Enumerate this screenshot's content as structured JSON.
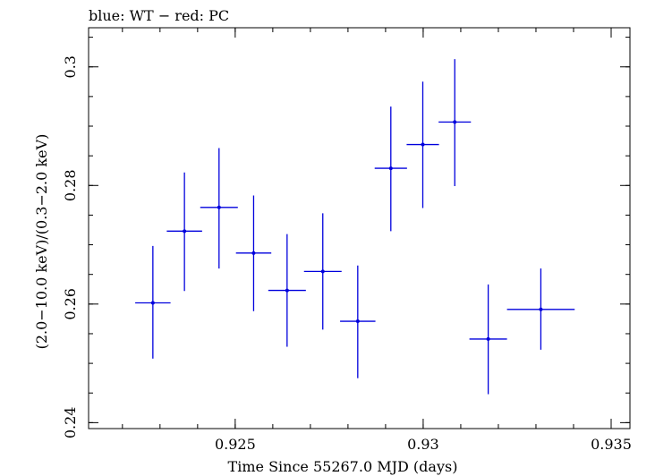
{
  "chart_data": {
    "type": "scatter",
    "title": "blue: WT − red: PC",
    "xlabel": "Time Since 55267.0 MJD (days)",
    "ylabel": "(2.0−10.0 keV)/(0.3−2.0 keV)",
    "xlim": [
      0.9211,
      0.9355
    ],
    "ylim": [
      0.239,
      0.3066
    ],
    "x_ticks": [
      {
        "value": 0.925,
        "label": "0.925"
      },
      {
        "value": 0.93,
        "label": "0.93"
      },
      {
        "value": 0.935,
        "label": "0.935"
      }
    ],
    "y_ticks": [
      {
        "value": 0.24,
        "label": "0.24"
      },
      {
        "value": 0.26,
        "label": "0.26"
      },
      {
        "value": 0.28,
        "label": "0.28"
      },
      {
        "value": 0.3,
        "label": "0.3"
      }
    ],
    "x_minor_step": 0.001,
    "y_minor_step": 0.005,
    "grid": false,
    "series": [
      {
        "name": "WT",
        "color": "#0000dd",
        "points": [
          {
            "x": 0.92281,
            "xerr": 0.00047,
            "y": 0.2602,
            "yerr_lo": 0.0094,
            "yerr_hi": 0.0096
          },
          {
            "x": 0.92365,
            "xerr": 0.00047,
            "y": 0.2723,
            "yerr_lo": 0.0101,
            "yerr_hi": 0.0099
          },
          {
            "x": 0.92457,
            "xerr": 0.0005,
            "y": 0.2763,
            "yerr_lo": 0.0103,
            "yerr_hi": 0.01
          },
          {
            "x": 0.92549,
            "xerr": 0.00047,
            "y": 0.2686,
            "yerr_lo": 0.0098,
            "yerr_hi": 0.0097
          },
          {
            "x": 0.92638,
            "xerr": 0.0005,
            "y": 0.2623,
            "yerr_lo": 0.0095,
            "yerr_hi": 0.0095
          },
          {
            "x": 0.92733,
            "xerr": 0.0005,
            "y": 0.2655,
            "yerr_lo": 0.0098,
            "yerr_hi": 0.0098
          },
          {
            "x": 0.92826,
            "xerr": 0.00047,
            "y": 0.2571,
            "yerr_lo": 0.0096,
            "yerr_hi": 0.0094
          },
          {
            "x": 0.92914,
            "xerr": 0.00043,
            "y": 0.2829,
            "yerr_lo": 0.0106,
            "yerr_hi": 0.0104
          },
          {
            "x": 0.92999,
            "xerr": 0.00043,
            "y": 0.2869,
            "yerr_lo": 0.0107,
            "yerr_hi": 0.0106
          },
          {
            "x": 0.93084,
            "xerr": 0.00043,
            "y": 0.2907,
            "yerr_lo": 0.0108,
            "yerr_hi": 0.0106
          },
          {
            "x": 0.93173,
            "xerr": 0.0005,
            "y": 0.2541,
            "yerr_lo": 0.0093,
            "yerr_hi": 0.0092
          },
          {
            "x": 0.93313,
            "xerr": 0.0009,
            "y": 0.2591,
            "yerr_lo": 0.0068,
            "yerr_hi": 0.0069
          }
        ]
      }
    ]
  }
}
